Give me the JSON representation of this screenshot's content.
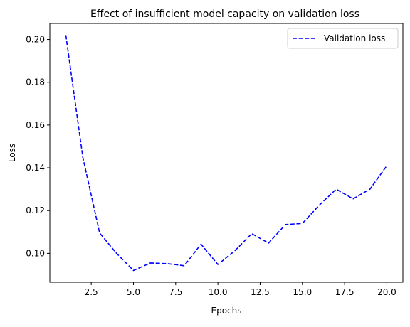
{
  "chart_data": {
    "type": "line",
    "title": "Effect of insufficient model capacity on validation loss",
    "xlabel": "Epochs",
    "ylabel": "Loss",
    "xlim": [
      0.05,
      20.95
    ],
    "ylim": [
      0.0865,
      0.2075
    ],
    "xticks": [
      2.5,
      5.0,
      7.5,
      10.0,
      12.5,
      15.0,
      17.5,
      20.0
    ],
    "xtick_labels": [
      "2.5",
      "5.0",
      "7.5",
      "10.0",
      "12.5",
      "15.0",
      "17.5",
      "20.0"
    ],
    "yticks": [
      0.1,
      0.12,
      0.14,
      0.16,
      0.18,
      0.2
    ],
    "ytick_labels": [
      "0.10",
      "0.12",
      "0.14",
      "0.16",
      "0.18",
      "0.20"
    ],
    "grid": false,
    "legend_position": "top-right",
    "series": [
      {
        "name": "Vaildation loss",
        "color": "#0000ff",
        "line_style": "dashed",
        "x": [
          1,
          2,
          3,
          4,
          5,
          6,
          7,
          8,
          9,
          10,
          11,
          12,
          13,
          14,
          15,
          16,
          17,
          18,
          19,
          20
        ],
        "y": [
          0.202,
          0.145,
          0.1095,
          0.1,
          0.092,
          0.0955,
          0.0952,
          0.0942,
          0.1043,
          0.0948,
          0.1012,
          0.1092,
          0.1048,
          0.1135,
          0.114,
          0.1225,
          0.13,
          0.1255,
          0.13,
          0.141
        ]
      }
    ]
  }
}
